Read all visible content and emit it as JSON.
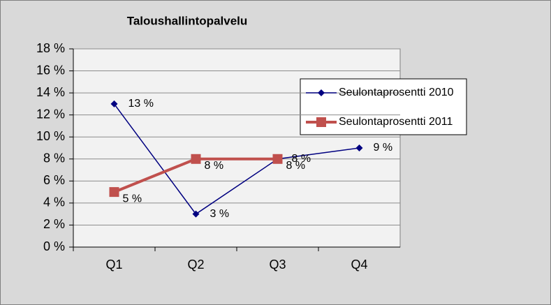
{
  "chart_data": {
    "type": "line",
    "title": "Taloushallintopalvelu",
    "categories": [
      "Q1",
      "Q2",
      "Q3",
      "Q4"
    ],
    "series": [
      {
        "name": "Seulontaprosentti 2010",
        "color": "#000080",
        "marker": "diamond",
        "values": [
          13,
          3,
          8,
          9
        ],
        "value_labels": [
          "13 %",
          "3 %",
          "8 %",
          "9 %"
        ]
      },
      {
        "name": "Seulontaprosentti 2011",
        "color": "#c0504d",
        "marker": "square",
        "values": [
          5,
          8,
          8,
          null
        ],
        "value_labels": [
          "5 %",
          "8 %",
          "8 %",
          null
        ]
      }
    ],
    "ylim": [
      0,
      18
    ],
    "yticks": [
      {
        "value": 0,
        "label": "0 %"
      },
      {
        "value": 2,
        "label": "2 %"
      },
      {
        "value": 4,
        "label": "4 %"
      },
      {
        "value": 6,
        "label": "6 %"
      },
      {
        "value": 8,
        "label": "8 %"
      },
      {
        "value": 10,
        "label": "10 %"
      },
      {
        "value": 12,
        "label": "12 %"
      },
      {
        "value": 14,
        "label": "14 %"
      },
      {
        "value": 16,
        "label": "16 %"
      },
      {
        "value": 18,
        "label": "18 %"
      }
    ],
    "grid": true,
    "legend": "right"
  }
}
